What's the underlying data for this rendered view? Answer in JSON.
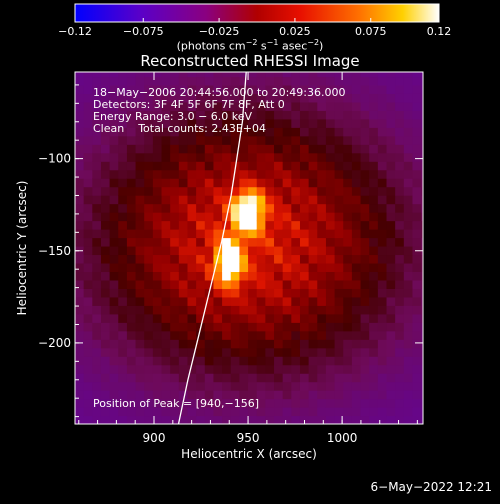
{
  "chart_data": {
    "type": "heatmap",
    "title": "Reconstructed RHESSI Image",
    "xlabel": "Heliocentric X (arcsec)",
    "ylabel": "Heliocentric Y (arcsec)",
    "xlim": [
      858,
      1043
    ],
    "ylim": [
      -244,
      -53
    ],
    "x_ticks": [
      900,
      950,
      1000
    ],
    "y_ticks": [
      -100,
      -150,
      -200
    ],
    "x_tick_labels": [
      "900",
      "950",
      "1000"
    ],
    "y_tick_labels": [
      "−100",
      "−150",
      "−200"
    ],
    "colorbar": {
      "range": [
        -0.12,
        0.12
      ],
      "ticks": [
        -0.12,
        -0.075,
        -0.025,
        0.025,
        0.075,
        0.12
      ],
      "tick_labels": [
        "−0.12",
        "−0.075",
        "−0.025",
        "0.025",
        "0.075",
        "0.12"
      ],
      "unit_prefix": "(photons cm",
      "unit_sup1": "−2",
      "unit_mid": " s",
      "unit_sup2": "−1",
      "unit_mid2": " asec",
      "unit_sup3": "−2",
      "unit_suffix": ")"
    },
    "annotations": [
      "18−May−2006 20:44:56.000 to 20:49:36.000",
      "Detectors: 3F 4F 5F 6F 7F 8F, Att 0",
      "Energy Range: 3.0 − 6.0 keV",
      "Clean    Total counts: 2.43E+04"
    ],
    "peak_label": "Position of Peak = [940,−156]",
    "peak": [
      940,
      -156
    ],
    "sources": [
      {
        "x": 950,
        "y": -128,
        "peak": 0.12,
        "sx": 6,
        "sy": 8
      },
      {
        "x": 940,
        "y": -156,
        "peak": 0.12,
        "sx": 5,
        "sy": 9
      }
    ],
    "limb": [
      [
        913,
        -244
      ],
      [
        918,
        -220
      ],
      [
        924,
        -195
      ],
      [
        930,
        -170
      ],
      [
        936,
        -145
      ],
      [
        941,
        -120
      ],
      [
        944,
        -100
      ],
      [
        947,
        -80
      ],
      [
        949,
        -53
      ]
    ],
    "footer": "6−May−2022 12:21"
  }
}
